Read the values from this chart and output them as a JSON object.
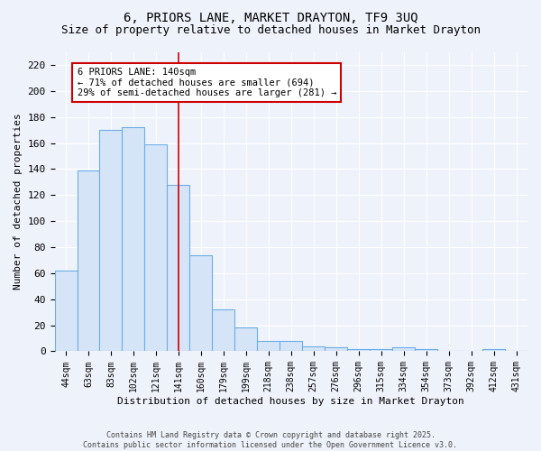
{
  "title_line1": "6, PRIORS LANE, MARKET DRAYTON, TF9 3UQ",
  "title_line2": "Size of property relative to detached houses in Market Drayton",
  "xlabel": "Distribution of detached houses by size in Market Drayton",
  "ylabel": "Number of detached properties",
  "categories": [
    "44sqm",
    "63sqm",
    "83sqm",
    "102sqm",
    "121sqm",
    "141sqm",
    "160sqm",
    "179sqm",
    "199sqm",
    "218sqm",
    "238sqm",
    "257sqm",
    "276sqm",
    "296sqm",
    "315sqm",
    "334sqm",
    "354sqm",
    "373sqm",
    "392sqm",
    "412sqm",
    "431sqm"
  ],
  "values": [
    62,
    139,
    170,
    172,
    159,
    128,
    74,
    32,
    18,
    8,
    8,
    4,
    3,
    2,
    2,
    3,
    2,
    0,
    0,
    2,
    0
  ],
  "bar_color": "#d6e4f7",
  "bar_edge_color": "#6aaee8",
  "marker_index": 5,
  "ylim": [
    0,
    230
  ],
  "yticks": [
    0,
    20,
    40,
    60,
    80,
    100,
    120,
    140,
    160,
    180,
    200,
    220
  ],
  "annotation_text": "6 PRIORS LANE: 140sqm\n← 71% of detached houses are smaller (694)\n29% of semi-detached houses are larger (281) →",
  "annotation_box_color": "#ffffff",
  "annotation_box_edge": "#cc0000",
  "vline_color": "#cc0000",
  "background_color": "#eef2fb",
  "grid_color": "#ffffff",
  "title_fontsize": 10,
  "subtitle_fontsize": 9,
  "footer_text": "Contains HM Land Registry data © Crown copyright and database right 2025.\nContains public sector information licensed under the Open Government Licence v3.0."
}
